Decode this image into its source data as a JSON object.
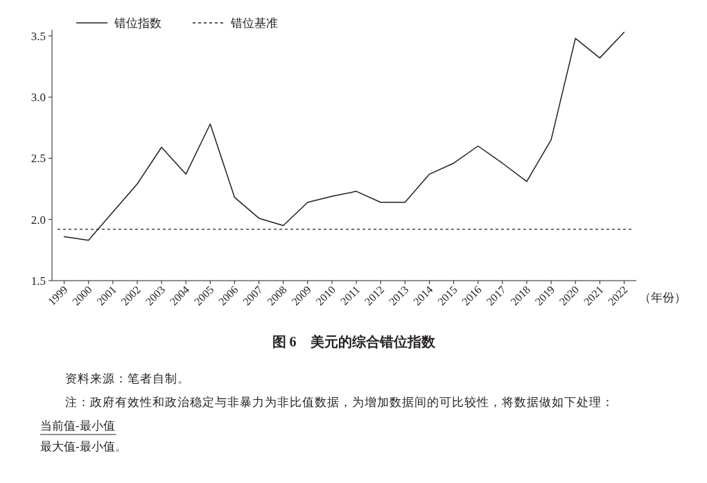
{
  "chart_data": {
    "type": "line",
    "title": "图 6　美元的综合错位指数",
    "xlabel": "（年份）",
    "categories": [
      "1999",
      "2000",
      "2001",
      "2002",
      "2003",
      "2004",
      "2005",
      "2006",
      "2007",
      "2008",
      "2009",
      "2010",
      "2011",
      "2012",
      "2013",
      "2014",
      "2015",
      "2016",
      "2017",
      "2018",
      "2019",
      "2020",
      "2021",
      "2022"
    ],
    "series": [
      {
        "name": "错位指数",
        "color": "#231f20",
        "line_style": "solid",
        "values": [
          1.86,
          1.83,
          2.06,
          2.29,
          2.59,
          2.37,
          2.78,
          2.18,
          2.01,
          1.95,
          2.14,
          2.19,
          2.23,
          2.14,
          2.14,
          2.37,
          2.46,
          2.6,
          2.46,
          2.31,
          2.65,
          3.48,
          3.32,
          3.53
        ]
      }
    ],
    "ref_lines": [
      {
        "axis": "y",
        "value": 1.92,
        "label": "错位基准",
        "color": "#231f20",
        "line_style": "dashed"
      }
    ],
    "ylim": [
      1.5,
      3.55
    ],
    "yticks": [
      {
        "value": 1.5,
        "label": "1.5"
      },
      {
        "value": 2,
        "label": "2.0"
      },
      {
        "value": 2.5,
        "label": "2.5"
      },
      {
        "value": 3,
        "label": "3.0"
      },
      {
        "value": 3.5,
        "label": "3.5"
      }
    ],
    "grid": false,
    "legend": "top left",
    "marker": "none",
    "annotations": [
      "资料来源：笔者自制。",
      "注：政府有效性和政治稳定与非暴力为非比值数据，为增加数据间的可比较性，将数据做如下处理：",
      "当前值-最小值",
      "最大值-最小值。"
    ]
  }
}
